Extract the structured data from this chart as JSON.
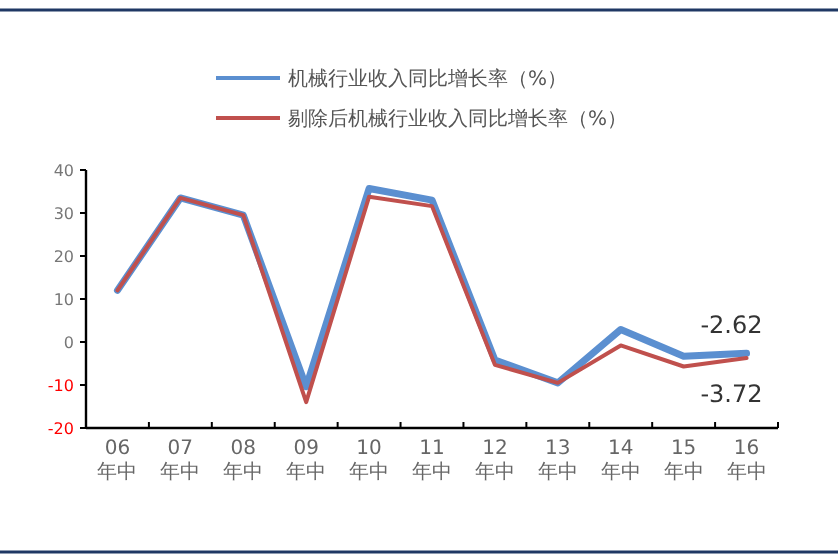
{
  "chart_data": {
    "type": "line",
    "categories": [
      "06年中",
      "07年中",
      "08年中",
      "09年中",
      "10年中",
      "11年中",
      "12年中",
      "13年中",
      "14年中",
      "15年中",
      "16年中"
    ],
    "series": [
      {
        "name": "机械行业收入同比增长率（%）",
        "color": "#5b8fd0",
        "values": [
          12,
          33.5,
          29.5,
          -10.4,
          35.7,
          33,
          -4.2,
          -9.5,
          2.9,
          -3.3,
          -2.62
        ]
      },
      {
        "name": "剔除后机械行业收入同比增长率（%）",
        "color": "#c0504d",
        "values": [
          12,
          33.5,
          29.5,
          -14,
          33.8,
          31.6,
          -5.3,
          -9.5,
          -0.8,
          -5.7,
          -3.72
        ]
      }
    ],
    "ylim": [
      -20,
      40
    ],
    "yticks": [
      -20,
      -10,
      0,
      10,
      20,
      30,
      40
    ],
    "grid": false,
    "legend": "top",
    "marker": "none",
    "line_style": "solid",
    "annotations": [
      {
        "text": "-2.62",
        "x": "16年中",
        "y": -2.62
      },
      {
        "text": "-3.72",
        "x": "16年中",
        "y": -3.72
      }
    ]
  }
}
